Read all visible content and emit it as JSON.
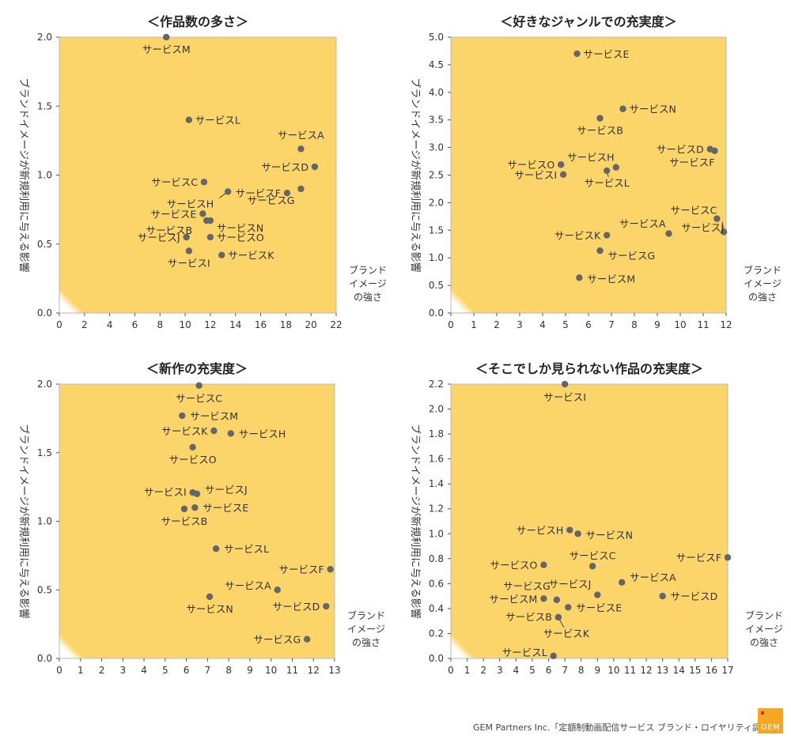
{
  "charts": [
    {
      "title": "＜作品数の多さ＞",
      "ylabel": "ブランドイメージが新規利用に与える影響",
      "xlabel": [
        "ブランド",
        "イメージ",
        "の強さ"
      ],
      "xlim": [
        0,
        22
      ],
      "ylim": [
        0,
        2.0
      ],
      "xticks": [
        0,
        2,
        4,
        6,
        8,
        10,
        12,
        14,
        16,
        18,
        20,
        22
      ],
      "yticks": [
        0.0,
        0.5,
        1.0,
        1.5,
        2.0
      ],
      "ydec": 1,
      "points": [
        {
          "name": "サービスM",
          "x": 8.5,
          "y": 2.0
        },
        {
          "name": "サービスL",
          "x": 10.3,
          "y": 1.4
        },
        {
          "name": "サービスA",
          "x": 19.2,
          "y": 1.19
        },
        {
          "name": "サービスD",
          "x": 20.3,
          "y": 1.06
        },
        {
          "name": "サービスC",
          "x": 11.5,
          "y": 0.95
        },
        {
          "name": "サービスF",
          "x": 18.1,
          "y": 0.87
        },
        {
          "name": "サービスG",
          "x": 19.2,
          "y": 0.9
        },
        {
          "name": "サービスH",
          "x": 13.4,
          "y": 0.88
        },
        {
          "name": "サービスE",
          "x": 11.4,
          "y": 0.72
        },
        {
          "name": "サービスB",
          "x": 11.7,
          "y": 0.67
        },
        {
          "name": "サービスN",
          "x": 12.0,
          "y": 0.67
        },
        {
          "name": "サービスJ",
          "x": 10.1,
          "y": 0.55
        },
        {
          "name": "サービスO",
          "x": 12.0,
          "y": 0.55
        },
        {
          "name": "サービスK",
          "x": 12.9,
          "y": 0.42
        },
        {
          "name": "サービスI",
          "x": 10.3,
          "y": 0.45
        }
      ]
    },
    {
      "title": "＜好きなジャンルでの充実度＞",
      "ylabel": "ブランドイメージが新規利用に与える影響",
      "xlabel": [
        "ブランド",
        "イメージ",
        "の強さ"
      ],
      "xlim": [
        0,
        12
      ],
      "ylim": [
        0,
        5.0
      ],
      "xticks": [
        0,
        1,
        2,
        3,
        4,
        5,
        6,
        7,
        8,
        9,
        10,
        11,
        12
      ],
      "yticks": [
        0.0,
        0.5,
        1.0,
        1.5,
        2.0,
        2.5,
        3.0,
        3.5,
        4.0,
        4.5,
        5.0
      ],
      "ydec": 1,
      "points": [
        {
          "name": "サービスE",
          "x": 5.5,
          "y": 4.7
        },
        {
          "name": "サービスN",
          "x": 7.5,
          "y": 3.7
        },
        {
          "name": "サービスB",
          "x": 6.5,
          "y": 3.53
        },
        {
          "name": "サービスH",
          "x": 7.2,
          "y": 2.64
        },
        {
          "name": "サービスO",
          "x": 4.8,
          "y": 2.69
        },
        {
          "name": "サービスI",
          "x": 4.9,
          "y": 2.51
        },
        {
          "name": "サービスL",
          "x": 6.8,
          "y": 2.58
        },
        {
          "name": "サービスD",
          "x": 11.3,
          "y": 2.97
        },
        {
          "name": "サービスF",
          "x": 11.5,
          "y": 2.94
        },
        {
          "name": "サービスC",
          "x": 11.6,
          "y": 1.71
        },
        {
          "name": "サービスA",
          "x": 9.5,
          "y": 1.44
        },
        {
          "name": "サービスJ",
          "x": 11.9,
          "y": 1.47
        },
        {
          "name": "サービスK",
          "x": 6.8,
          "y": 1.41
        },
        {
          "name": "サービスG",
          "x": 6.5,
          "y": 1.13
        },
        {
          "name": "サービスM",
          "x": 5.6,
          "y": 0.64
        }
      ]
    },
    {
      "title": "＜新作の充実度＞",
      "ylabel": "ブランドイメージが新規利用に与える影響",
      "xlabel": [
        "ブランド",
        "イメージ",
        "の強さ"
      ],
      "xlim": [
        0,
        13
      ],
      "ylim": [
        0,
        2.0
      ],
      "xticks": [
        0,
        1,
        2,
        3,
        4,
        5,
        6,
        7,
        8,
        9,
        10,
        11,
        12,
        13
      ],
      "yticks": [
        0.0,
        0.5,
        1.0,
        1.5,
        2.0
      ],
      "ydec": 1,
      "points": [
        {
          "name": "サービスC",
          "x": 6.6,
          "y": 1.99
        },
        {
          "name": "サービスM",
          "x": 5.8,
          "y": 1.77
        },
        {
          "name": "サービスK",
          "x": 7.3,
          "y": 1.66
        },
        {
          "name": "サービスH",
          "x": 8.1,
          "y": 1.64
        },
        {
          "name": "サービスO",
          "x": 6.3,
          "y": 1.54
        },
        {
          "name": "サービスI",
          "x": 6.3,
          "y": 1.21
        },
        {
          "name": "サービスJ",
          "x": 6.5,
          "y": 1.2
        },
        {
          "name": "サービスE",
          "x": 6.4,
          "y": 1.1
        },
        {
          "name": "サービスB",
          "x": 5.9,
          "y": 1.09
        },
        {
          "name": "サービスL",
          "x": 7.4,
          "y": 0.8
        },
        {
          "name": "サービスF",
          "x": 12.8,
          "y": 0.65
        },
        {
          "name": "サービスA",
          "x": 10.3,
          "y": 0.5
        },
        {
          "name": "サービスD",
          "x": 12.6,
          "y": 0.38
        },
        {
          "name": "サービスN",
          "x": 7.1,
          "y": 0.45
        },
        {
          "name": "サービスG",
          "x": 11.7,
          "y": 0.14
        }
      ]
    },
    {
      "title": "＜そこでしか見られない作品の充実度＞",
      "ylabel": "ブランドイメージが新規利用に与える影響",
      "xlabel": [
        "ブランド",
        "イメージ",
        "の強さ"
      ],
      "xlim": [
        0,
        17
      ],
      "ylim": [
        0,
        2.2
      ],
      "xticks": [
        0,
        1,
        2,
        3,
        4,
        5,
        6,
        7,
        8,
        9,
        10,
        11,
        12,
        13,
        14,
        15,
        16,
        17
      ],
      "yticks": [
        0.0,
        0.2,
        0.4,
        0.6,
        0.8,
        1.0,
        1.2,
        1.4,
        1.6,
        1.8,
        2.0,
        2.2
      ],
      "ydec": 1,
      "points": [
        {
          "name": "サービスI",
          "x": 7.0,
          "y": 2.2
        },
        {
          "name": "サービスH",
          "x": 7.3,
          "y": 1.03
        },
        {
          "name": "サービスN",
          "x": 7.8,
          "y": 1.0
        },
        {
          "name": "サービスF",
          "x": 17.0,
          "y": 0.81
        },
        {
          "name": "サービスC",
          "x": 8.7,
          "y": 0.74
        },
        {
          "name": "サービスO",
          "x": 5.7,
          "y": 0.75
        },
        {
          "name": "サービスA",
          "x": 10.5,
          "y": 0.61
        },
        {
          "name": "サービスG",
          "x": 6.5,
          "y": 0.47
        },
        {
          "name": "サービスJ",
          "x": 9.0,
          "y": 0.51
        },
        {
          "name": "サービスD",
          "x": 13.0,
          "y": 0.5
        },
        {
          "name": "サービスM",
          "x": 5.7,
          "y": 0.48
        },
        {
          "name": "サービスE",
          "x": 7.2,
          "y": 0.41
        },
        {
          "name": "サービスB",
          "x": 6.6,
          "y": 0.33
        },
        {
          "name": "サービスK",
          "x": 6.6,
          "y": 0.33
        },
        {
          "name": "サービスL",
          "x": 6.3,
          "y": 0.02
        }
      ]
    }
  ],
  "footer": "GEM Partners Inc.「定額制動画配信サービス ブランド・ロイヤリティ調査」",
  "logo_text": "GEM",
  "colors": {
    "gradient_outer": "#fbd46a",
    "gradient_inner": "#ffffff",
    "point": "#666666",
    "accent": "#f5a623"
  }
}
